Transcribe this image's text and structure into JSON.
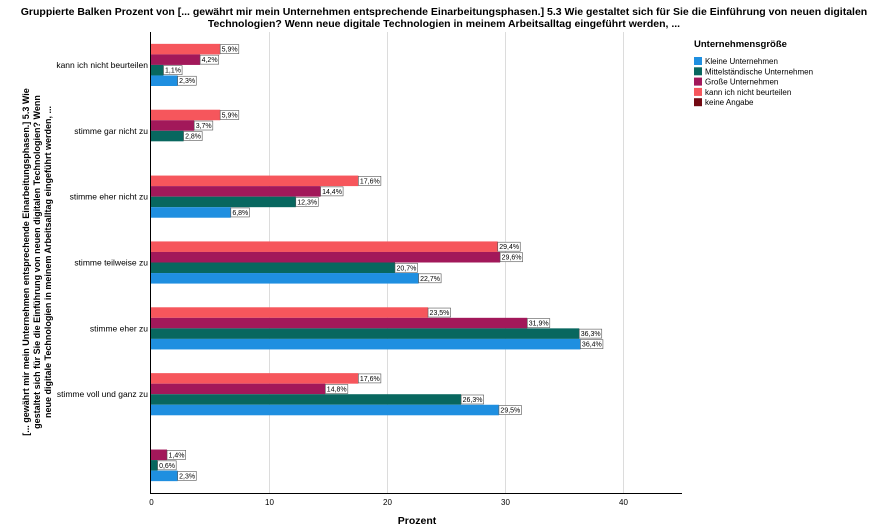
{
  "chart_data": {
    "type": "bar",
    "orientation": "horizontal",
    "title_lines": [
      "Gruppierte Balken Prozent von [... gewährt mir mein Unternehmen entsprechende Einarbeitungsphasen.] 5.3 Wie gestaltet sich für Sie die Einführung von neuen digitalen",
      "Technologien?  Wenn neue digitale Technologien in meinem Arbeitsalltag eingeführt werden, ..."
    ],
    "xlabel": "Prozent",
    "ylabel_lines": [
      "[... gewährt mir mein Unternehmen entsprechende Einarbeitungsphasen.] 5.3 Wie",
      "gestaltet sich für Sie die Einführung von neuen digitalen Technologien?  Wenn",
      "neue digitale Technologien in meinem Arbeitsalltag eingeführt werden, ..."
    ],
    "xlim": [
      0,
      45
    ],
    "xticks": [
      0,
      10,
      20,
      30,
      40
    ],
    "grid": true,
    "legend_position": "right",
    "legend_title": "Unternehmensgröße",
    "categories": [
      "kann ich nicht beurteilen",
      "stimme gar nicht zu",
      "stimme eher nicht zu",
      "stimme teilweise zu",
      "stimme eher zu",
      "stimme voll und ganz zu",
      ""
    ],
    "series": [
      {
        "name": "Kleine Unternehmen",
        "color": "#1f8fe0",
        "values": [
          2.3,
          null,
          6.8,
          22.7,
          36.4,
          29.5,
          2.3
        ],
        "labels": [
          "2,3%",
          "",
          "6,8%",
          "22,7%",
          "36,4%",
          "29,5%",
          "2,3%"
        ]
      },
      {
        "name": "Mittelständische Unternehmen",
        "color": "#08675f",
        "values": [
          1.1,
          2.8,
          12.3,
          20.7,
          36.3,
          26.3,
          0.6
        ],
        "labels": [
          "1,1%",
          "2,8%",
          "12,3%",
          "20,7%",
          "36,3%",
          "26,3%",
          "0,6%"
        ]
      },
      {
        "name": "Große Unternehmen",
        "color": "#a2185a",
        "values": [
          4.2,
          3.7,
          14.4,
          29.6,
          31.9,
          14.8,
          1.4
        ],
        "labels": [
          "4,2%",
          "3,7%",
          "14,4%",
          "29,6%",
          "31,9%",
          "14,8%",
          "1,4%"
        ]
      },
      {
        "name": "kann ich nicht beurteilen",
        "color": "#f6565c",
        "values": [
          5.9,
          5.9,
          17.6,
          29.4,
          23.5,
          17.6,
          null
        ],
        "labels": [
          "5,9%",
          "5,9%",
          "17,6%",
          "29,4%",
          "23,5%",
          "17,6%",
          ""
        ]
      },
      {
        "name": "keine Angabe",
        "color": "#720912",
        "values": [
          null,
          null,
          null,
          null,
          null,
          null,
          null
        ],
        "labels": [
          "",
          "",
          "",
          "",
          "",
          "",
          ""
        ]
      }
    ]
  }
}
